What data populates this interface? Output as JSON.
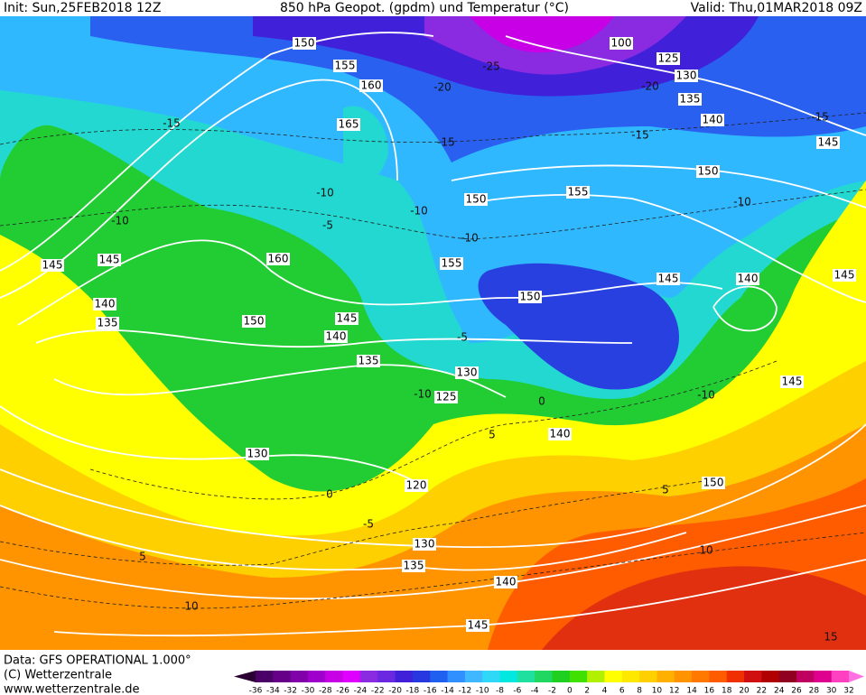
{
  "header": {
    "init": "Init: Sun,25FEB2018 12Z",
    "title": "850 hPa Geopot. (gpdm) und Temperatur (°C)",
    "valid": "Valid: Thu,01MAR2018 09Z"
  },
  "footer": {
    "data": "Data: GFS OPERATIONAL 1.000°",
    "copyright": "(C) Wetterzentrale",
    "url": "www.wetterzentrale.de"
  },
  "colorbar": {
    "ticks": [
      -36,
      -34,
      -32,
      -30,
      -28,
      -26,
      -24,
      -22,
      -20,
      -18,
      -16,
      -14,
      -12,
      -10,
      -8,
      -6,
      -4,
      -2,
      0,
      2,
      4,
      6,
      8,
      10,
      12,
      14,
      16,
      18,
      20,
      22,
      24,
      26,
      28,
      30,
      32
    ],
    "colors": [
      "#2a0032",
      "#4a0066",
      "#660088",
      "#8000aa",
      "#a000cc",
      "#c800e6",
      "#e000ff",
      "#8a2be2",
      "#6a28e0",
      "#4020d8",
      "#2838e0",
      "#2060f0",
      "#3090ff",
      "#40b8ff",
      "#30d8f8",
      "#00e8e0",
      "#20e0a0",
      "#20d860",
      "#20d020",
      "#40e000",
      "#b0f000",
      "#ffff00",
      "#ffe800",
      "#ffd000",
      "#ffb000",
      "#ff9400",
      "#ff7800",
      "#ff5c00",
      "#f03000",
      "#d01010",
      "#b00000",
      "#900020",
      "#c00060",
      "#e00090",
      "#ff40c0",
      "#ff70e0"
    ]
  },
  "contour_labels": {
    "geopotential": [
      150,
      155,
      160,
      165,
      100,
      125,
      130,
      135,
      140,
      145,
      150,
      155,
      150,
      160,
      145,
      145,
      140,
      135,
      150,
      145,
      140,
      135,
      155,
      150,
      145,
      140,
      145,
      130,
      125,
      145,
      140,
      130,
      120,
      150,
      130,
      135,
      140,
      145
    ],
    "temperature": [
      -25,
      -20,
      -20,
      -15,
      -15,
      -15,
      -15,
      -10,
      -10,
      -10,
      -10,
      -10,
      -10,
      -10,
      -5,
      -5,
      0,
      0,
      5,
      5,
      10,
      10,
      15,
      -5,
      5
    ]
  }
}
